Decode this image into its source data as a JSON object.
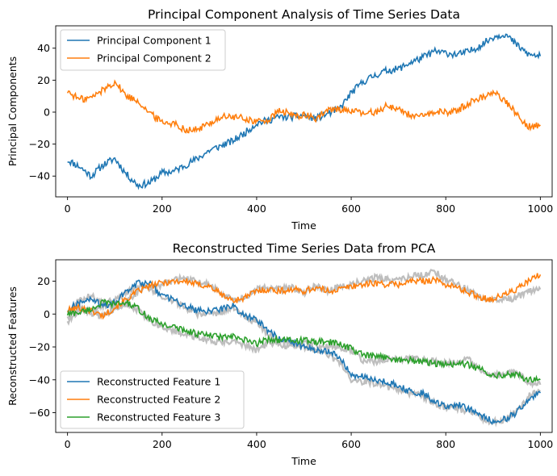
{
  "chart_data": [
    {
      "type": "line",
      "title": "Principal Component Analysis of Time Series Data",
      "xlabel": "Time",
      "ylabel": "Principal Components",
      "xlim": [
        -25,
        1025
      ],
      "ylim": [
        -53,
        54
      ],
      "xticks": [
        0,
        200,
        400,
        600,
        800,
        1000
      ],
      "yticks": [
        -40,
        -20,
        0,
        20,
        40
      ],
      "legend": "upper-left",
      "series": [
        {
          "name": "Principal Component 1",
          "color": "#1f77b4",
          "x": [
            0,
            25,
            50,
            75,
            100,
            125,
            150,
            175,
            200,
            225,
            250,
            275,
            300,
            325,
            350,
            375,
            400,
            425,
            450,
            475,
            500,
            525,
            550,
            575,
            600,
            625,
            650,
            675,
            700,
            725,
            750,
            775,
            800,
            825,
            850,
            875,
            900,
            925,
            950,
            975,
            1000
          ],
          "values": [
            -30,
            -34,
            -40,
            -33,
            -29,
            -39,
            -46,
            -44,
            -38,
            -37,
            -33,
            -29,
            -24,
            -21,
            -18,
            -13,
            -7,
            -5,
            -3,
            -3,
            -2,
            -4,
            -1,
            2,
            12,
            19,
            23,
            26,
            27,
            31,
            34,
            38,
            37,
            36,
            38,
            42,
            47,
            49,
            42,
            36,
            35
          ]
        },
        {
          "name": "Principal Component 2",
          "color": "#ff7f0e",
          "x": [
            0,
            25,
            50,
            75,
            100,
            125,
            150,
            175,
            200,
            225,
            250,
            275,
            300,
            325,
            350,
            375,
            400,
            425,
            450,
            475,
            500,
            525,
            550,
            575,
            600,
            625,
            650,
            675,
            700,
            725,
            750,
            775,
            800,
            825,
            850,
            875,
            900,
            925,
            950,
            975,
            1000
          ],
          "values": [
            13,
            8,
            9,
            14,
            19,
            10,
            7,
            -1,
            -6,
            -7,
            -11,
            -11,
            -7,
            -3,
            -3,
            -4,
            -6,
            -5,
            1,
            -2,
            -2,
            -4,
            1,
            2,
            1,
            -1,
            0,
            4,
            2,
            -2,
            -3,
            0,
            0,
            1,
            6,
            9,
            13,
            7,
            -1,
            -9,
            -8
          ]
        }
      ]
    },
    {
      "type": "line",
      "title": "Reconstructed Time Series Data from PCA",
      "xlabel": "Time",
      "ylabel": "Reconstructed Features",
      "xlim": [
        -25,
        1025
      ],
      "ylim": [
        -72,
        33
      ],
      "xticks": [
        0,
        200,
        400,
        600,
        800,
        1000
      ],
      "yticks": [
        -60,
        -40,
        -20,
        0,
        20
      ],
      "legend": "lower-left",
      "background_series_color": "#bebebe",
      "series": [
        {
          "name": "Reconstructed Feature 1",
          "color": "#1f77b4",
          "x": [
            0,
            25,
            50,
            75,
            100,
            125,
            150,
            175,
            200,
            225,
            250,
            275,
            300,
            325,
            350,
            375,
            400,
            425,
            450,
            475,
            500,
            525,
            550,
            575,
            600,
            625,
            650,
            675,
            700,
            725,
            750,
            775,
            800,
            825,
            850,
            875,
            900,
            925,
            950,
            975,
            1000
          ],
          "values": [
            3,
            7,
            9,
            5,
            7,
            14,
            19,
            18,
            11,
            9,
            5,
            2,
            2,
            3,
            5,
            -1,
            -3,
            -10,
            -16,
            -17,
            -20,
            -22,
            -23,
            -26,
            -37,
            -38,
            -40,
            -41,
            -44,
            -47,
            -48,
            -53,
            -56,
            -55,
            -58,
            -62,
            -65,
            -64,
            -60,
            -52,
            -48
          ],
          "original": [
            -2,
            9,
            11,
            7,
            8,
            13,
            17,
            16,
            10,
            8,
            4,
            0,
            -1,
            1,
            4,
            -2,
            -5,
            -12,
            -17,
            -18,
            -20,
            -22,
            -24,
            -30,
            -40,
            -41,
            -42,
            -44,
            -46,
            -48,
            -50,
            -54,
            -57,
            -57,
            -60,
            -63,
            -66,
            -64,
            -59,
            -50,
            -47
          ]
        },
        {
          "name": "Reconstructed Feature 2",
          "color": "#ff7f0e",
          "x": [
            0,
            25,
            50,
            75,
            100,
            125,
            150,
            175,
            200,
            225,
            250,
            275,
            300,
            325,
            350,
            375,
            400,
            425,
            450,
            475,
            500,
            525,
            550,
            575,
            600,
            625,
            650,
            675,
            700,
            725,
            750,
            775,
            800,
            825,
            850,
            875,
            900,
            925,
            950,
            975,
            1000
          ],
          "values": [
            2,
            4,
            2,
            -1,
            4,
            9,
            14,
            17,
            19,
            20,
            20,
            18,
            17,
            12,
            8,
            10,
            14,
            15,
            14,
            15,
            14,
            16,
            14,
            15,
            17,
            18,
            19,
            18,
            18,
            20,
            20,
            21,
            18,
            16,
            13,
            10,
            9,
            12,
            15,
            20,
            24
          ],
          "original": [
            0,
            3,
            1,
            -2,
            3,
            8,
            14,
            16,
            18,
            21,
            22,
            19,
            18,
            13,
            9,
            10,
            15,
            16,
            15,
            16,
            13,
            17,
            14,
            17,
            18,
            20,
            22,
            21,
            20,
            23,
            24,
            26,
            21,
            18,
            14,
            10,
            8,
            9,
            10,
            14,
            15
          ]
        },
        {
          "name": "Reconstructed Feature 3",
          "color": "#2ca02c",
          "x": [
            0,
            25,
            50,
            75,
            100,
            125,
            150,
            175,
            200,
            225,
            250,
            275,
            300,
            325,
            350,
            375,
            400,
            425,
            450,
            475,
            500,
            525,
            550,
            575,
            600,
            625,
            650,
            675,
            700,
            725,
            750,
            775,
            800,
            825,
            850,
            875,
            900,
            925,
            950,
            975,
            1000
          ],
          "values": [
            0,
            1,
            3,
            7,
            6,
            7,
            3,
            -3,
            -6,
            -8,
            -10,
            -12,
            -13,
            -14,
            -14,
            -16,
            -18,
            -15,
            -16,
            -16,
            -16,
            -17,
            -17,
            -18,
            -21,
            -25,
            -26,
            -26,
            -28,
            -28,
            -29,
            -30,
            -31,
            -30,
            -31,
            -34,
            -37,
            -37,
            -37,
            -40,
            -40
          ],
          "original": [
            -5,
            3,
            2,
            5,
            4,
            6,
            2,
            -4,
            -8,
            -10,
            -12,
            -14,
            -16,
            -17,
            -16,
            -19,
            -22,
            -18,
            -19,
            -19,
            -18,
            -19,
            -20,
            -20,
            -22,
            -28,
            -29,
            -27,
            -28,
            -27,
            -28,
            -29,
            -30,
            -28,
            -28,
            -34,
            -38,
            -36,
            -35,
            -42,
            -43
          ]
        }
      ]
    }
  ]
}
